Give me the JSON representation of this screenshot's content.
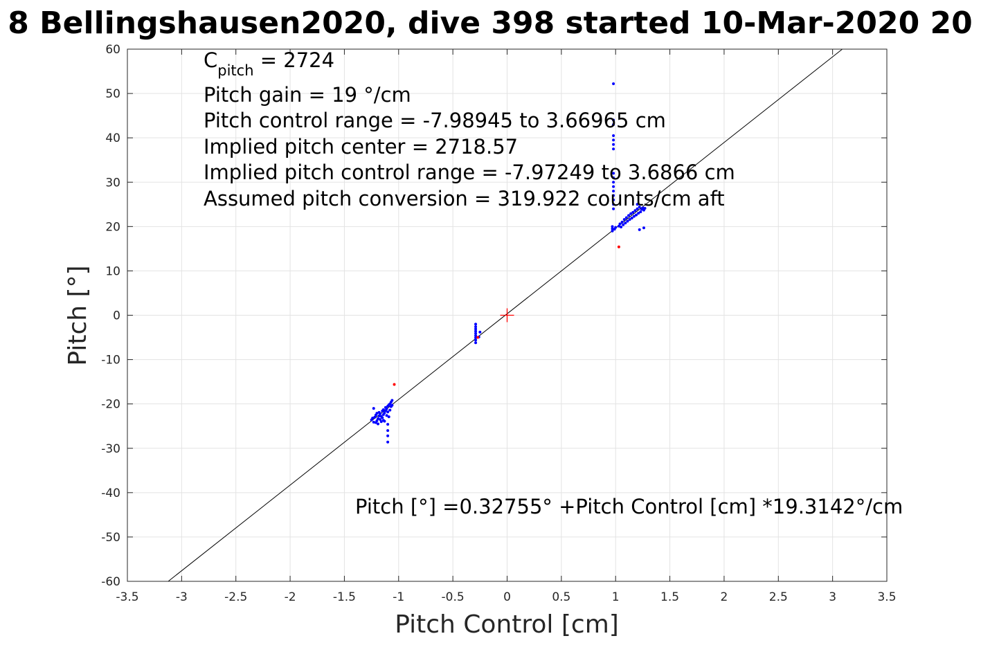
{
  "chart_data": {
    "type": "scatter",
    "title": "8 Bellingshausen2020, dive 398 started 10-Mar-2020 20",
    "xlabel": "Pitch Control [cm]",
    "ylabel": "Pitch [°]",
    "xlim": [
      -3.5,
      3.5
    ],
    "ylim": [
      -60,
      60
    ],
    "xticks": [
      -3.5,
      -3,
      -2.5,
      -2,
      -1.5,
      -1,
      -0.5,
      0,
      0.5,
      1,
      1.5,
      2,
      2.5,
      3,
      3.5
    ],
    "yticks": [
      -60,
      -50,
      -40,
      -30,
      -20,
      -10,
      0,
      10,
      20,
      30,
      40,
      50,
      60
    ],
    "xtick_labels": [
      "-3.5",
      "-3",
      "-2.5",
      "-2",
      "-1.5",
      "-1",
      "-0.5",
      "0",
      "0.5",
      "1",
      "1.5",
      "2",
      "2.5",
      "3",
      "3.5"
    ],
    "ytick_labels": [
      "-60",
      "-50",
      "-40",
      "-30",
      "-20",
      "-10",
      "0",
      "10",
      "20",
      "30",
      "40",
      "50",
      "60"
    ],
    "grid": true,
    "annotations": {
      "c_pitch_symbol": "C",
      "c_pitch_subscript": "pitch",
      "c_pitch_value": " = 2724",
      "pitch_gain": "Pitch gain = 19 °/cm",
      "pitch_control_range": "Pitch control range = -7.98945 to 3.66965 cm",
      "implied_center": "Implied pitch center = 2718.57",
      "implied_range": "Implied pitch control range = -7.97249 to 3.6866 cm",
      "assumed_conversion": "Assumed pitch conversion = 319.922 counts/cm aft",
      "fit_equation": "Pitch [°] =0.32755° +Pitch Control [cm] *19.3142°/cm"
    },
    "fit_line": {
      "intercept": 0.32755,
      "slope": 19.3142,
      "color": "#000000"
    },
    "center_marker": {
      "x": 0,
      "y": 0,
      "color": "#ff0000"
    },
    "series": [
      {
        "color": "#0000ff",
        "points": [
          [
            -1.25,
            -23.6
          ],
          [
            -1.24,
            -23.2
          ],
          [
            -1.23,
            -24.1
          ],
          [
            -1.22,
            -23.0
          ],
          [
            -1.21,
            -22.5
          ],
          [
            -1.2,
            -23.8
          ],
          [
            -1.2,
            -22.1
          ],
          [
            -1.19,
            -24.5
          ],
          [
            -1.19,
            -23.3
          ],
          [
            -1.18,
            -22.7
          ],
          [
            -1.18,
            -21.9
          ],
          [
            -1.17,
            -23.5
          ],
          [
            -1.17,
            -22.2
          ],
          [
            -1.16,
            -24.0
          ],
          [
            -1.16,
            -22.8
          ],
          [
            -1.15,
            -21.6
          ],
          [
            -1.15,
            -23.1
          ],
          [
            -1.14,
            -22.4
          ],
          [
            -1.14,
            -21.3
          ],
          [
            -1.13,
            -23.9
          ],
          [
            -1.13,
            -22.0
          ],
          [
            -1.12,
            -21.5
          ],
          [
            -1.12,
            -20.8
          ],
          [
            -1.11,
            -22.6
          ],
          [
            -1.11,
            -21.1
          ],
          [
            -1.1,
            -20.5
          ],
          [
            -1.1,
            -21.8
          ],
          [
            -1.09,
            -20.2
          ],
          [
            -1.09,
            -22.9
          ],
          [
            -1.08,
            -20.0
          ],
          [
            -1.08,
            -21.4
          ],
          [
            -1.07,
            -19.6
          ],
          [
            -1.07,
            -20.6
          ],
          [
            -1.06,
            -19.2
          ],
          [
            -1.06,
            -20.3
          ],
          [
            -1.23,
            -21.0
          ],
          [
            -1.21,
            -24.2
          ],
          [
            -1.14,
            -23.7
          ],
          [
            -1.1,
            -24.6
          ],
          [
            -1.1,
            -26.0
          ],
          [
            -1.1,
            -27.2
          ],
          [
            -1.1,
            -28.6
          ],
          [
            -0.29,
            -2.0
          ],
          [
            -0.29,
            -2.6
          ],
          [
            -0.29,
            -3.1
          ],
          [
            -0.29,
            -3.6
          ],
          [
            -0.29,
            -4.1
          ],
          [
            -0.29,
            -4.6
          ],
          [
            -0.29,
            -5.1
          ],
          [
            -0.29,
            -5.6
          ],
          [
            -0.29,
            -6.2
          ],
          [
            -0.25,
            -3.8
          ],
          [
            -0.26,
            -4.9
          ],
          [
            0.97,
            19.0
          ],
          [
            0.97,
            19.5
          ],
          [
            0.97,
            20.0
          ],
          [
            0.98,
            24.0
          ],
          [
            0.98,
            25.0
          ],
          [
            0.98,
            26.0
          ],
          [
            0.98,
            27.0
          ],
          [
            0.98,
            28.0
          ],
          [
            0.98,
            29.0
          ],
          [
            0.98,
            30.0
          ],
          [
            0.98,
            31.0
          ],
          [
            0.98,
            32.0
          ],
          [
            0.98,
            37.5
          ],
          [
            0.98,
            38.5
          ],
          [
            0.98,
            39.5
          ],
          [
            0.98,
            40.5
          ],
          [
            0.98,
            43.0
          ],
          [
            0.98,
            44.0
          ],
          [
            0.98,
            52.2
          ],
          [
            0.99,
            19.4
          ],
          [
            1.0,
            19.8
          ],
          [
            1.03,
            20.1
          ],
          [
            1.04,
            20.6
          ],
          [
            1.05,
            19.9
          ],
          [
            1.06,
            21.0
          ],
          [
            1.07,
            20.4
          ],
          [
            1.08,
            21.6
          ],
          [
            1.09,
            20.8
          ],
          [
            1.1,
            22.0
          ],
          [
            1.11,
            21.2
          ],
          [
            1.12,
            22.5
          ],
          [
            1.13,
            21.6
          ],
          [
            1.14,
            22.9
          ],
          [
            1.15,
            21.9
          ],
          [
            1.16,
            23.2
          ],
          [
            1.17,
            22.3
          ],
          [
            1.18,
            23.6
          ],
          [
            1.19,
            22.6
          ],
          [
            1.2,
            24.0
          ],
          [
            1.21,
            23.0
          ],
          [
            1.22,
            24.4
          ],
          [
            1.23,
            23.3
          ],
          [
            1.24,
            23.9
          ],
          [
            1.25,
            24.2
          ],
          [
            1.26,
            23.7
          ],
          [
            1.22,
            19.3
          ],
          [
            1.26,
            19.7
          ],
          [
            1.27,
            24.1
          ],
          [
            1.2,
            25.0
          ]
        ]
      },
      {
        "color": "#ff0000",
        "points": [
          [
            -1.04,
            -15.6
          ],
          [
            -0.27,
            -5.0
          ],
          [
            1.03,
            15.4
          ]
        ]
      }
    ]
  }
}
